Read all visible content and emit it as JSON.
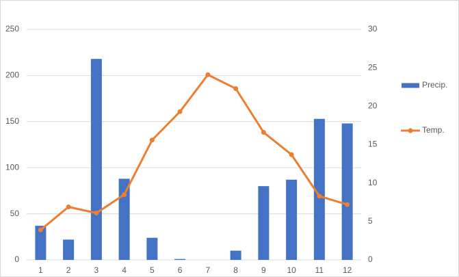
{
  "chart_data": {
    "type": "bar-line",
    "categories": [
      1,
      2,
      3,
      4,
      5,
      6,
      7,
      8,
      9,
      10,
      11,
      12
    ],
    "series": [
      {
        "name": "Precip.",
        "type": "bar",
        "color": "#4472c4",
        "values": [
          37,
          22,
          218,
          88,
          24,
          1,
          0,
          10,
          80,
          87,
          153,
          148
        ]
      },
      {
        "name": "Temp.",
        "type": "line",
        "axis": "y2",
        "color": "#ed7d31",
        "values": [
          3.9,
          6.9,
          6.1,
          8.5,
          15.6,
          19.3,
          24.1,
          22.3,
          16.6,
          13.7,
          8.3,
          7.2
        ]
      }
    ],
    "ylim": [
      0,
      250
    ],
    "yticks": [
      0,
      50,
      100,
      150,
      200,
      250
    ],
    "y2lim": [
      0,
      30
    ],
    "y2ticks": [
      0,
      5,
      10,
      15,
      20,
      25,
      30
    ],
    "grid": true,
    "legend": "right"
  }
}
